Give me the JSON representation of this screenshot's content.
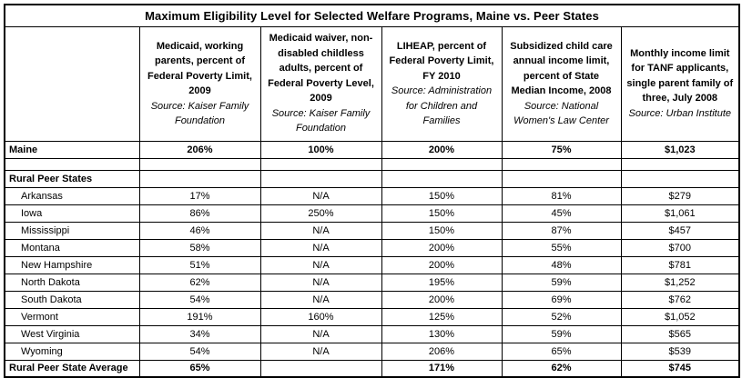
{
  "title": "Maximum Eligibility Level for Selected Welfare Programs, Maine vs. Peer States",
  "table": {
    "columns": [
      {
        "label": "",
        "source": ""
      },
      {
        "label": "Medicaid, working parents, percent of Federal Poverty Limit, 2009",
        "source": "Source: Kaiser Family Foundation"
      },
      {
        "label": "Medicaid waiver, non-disabled childless adults, percent of Federal Poverty Level, 2009",
        "source": "Source: Kaiser Family Foundation"
      },
      {
        "label": "LIHEAP, percent of Federal Poverty Limit, FY 2010",
        "source": "Source: Administration for Children and Families"
      },
      {
        "label": "Subsidized child care annual income limit, percent of State Median Income, 2008",
        "source": "Source: National Women's Law Center"
      },
      {
        "label": "Monthly income limit for TANF applicants, single parent family of three, July 2008",
        "source": "Source: Urban Institute"
      }
    ],
    "rows": [
      {
        "label": "Maine",
        "style": "maine",
        "values": [
          "206%",
          "100%",
          "200%",
          "75%",
          "$1,023"
        ]
      },
      {
        "label": "",
        "style": "spacer",
        "values": [
          "",
          "",
          "",
          "",
          ""
        ]
      },
      {
        "label": "Rural Peer States",
        "style": "section",
        "values": [
          "",
          "",
          "",
          "",
          ""
        ]
      },
      {
        "label": "Arkansas",
        "style": "state",
        "values": [
          "17%",
          "N/A",
          "150%",
          "81%",
          "$279"
        ]
      },
      {
        "label": "Iowa",
        "style": "state",
        "values": [
          "86%",
          "250%",
          "150%",
          "45%",
          "$1,061"
        ]
      },
      {
        "label": "Mississippi",
        "style": "state",
        "values": [
          "46%",
          "N/A",
          "150%",
          "87%",
          "$457"
        ]
      },
      {
        "label": "Montana",
        "style": "state",
        "values": [
          "58%",
          "N/A",
          "200%",
          "55%",
          "$700"
        ]
      },
      {
        "label": "New Hampshire",
        "style": "state",
        "values": [
          "51%",
          "N/A",
          "200%",
          "48%",
          "$781"
        ]
      },
      {
        "label": "North Dakota",
        "style": "state",
        "values": [
          "62%",
          "N/A",
          "195%",
          "59%",
          "$1,252"
        ]
      },
      {
        "label": "South Dakota",
        "style": "state",
        "values": [
          "54%",
          "N/A",
          "200%",
          "69%",
          "$762"
        ]
      },
      {
        "label": "Vermont",
        "style": "state",
        "values": [
          "191%",
          "160%",
          "125%",
          "52%",
          "$1,052"
        ]
      },
      {
        "label": "West Virginia",
        "style": "state",
        "values": [
          "34%",
          "N/A",
          "130%",
          "59%",
          "$565"
        ]
      },
      {
        "label": "Wyoming",
        "style": "state",
        "values": [
          "54%",
          "N/A",
          "206%",
          "65%",
          "$539"
        ]
      },
      {
        "label": "Rural Peer State Average",
        "style": "average",
        "values": [
          "65%",
          "",
          "171%",
          "62%",
          "$745"
        ]
      }
    ]
  },
  "colors": {
    "border": "#000000",
    "text": "#000000",
    "background": "#ffffff"
  }
}
